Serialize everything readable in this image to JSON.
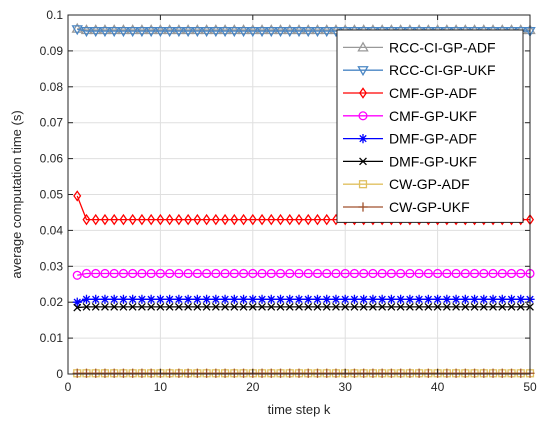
{
  "chart_data": {
    "type": "line",
    "title": "",
    "xlabel": "time step k",
    "ylabel": "average computation time (s)",
    "xlim": [
      0,
      50
    ],
    "ylim": [
      0,
      0.1
    ],
    "xticks": [
      0,
      10,
      20,
      30,
      40,
      50
    ],
    "yticks": [
      0,
      0.01,
      0.02,
      0.03,
      0.04,
      0.05,
      0.06,
      0.07,
      0.08,
      0.09,
      0.1
    ],
    "xtick_labels": [
      "0",
      "10",
      "20",
      "30",
      "40",
      "50"
    ],
    "ytick_labels": [
      "0",
      "0.01",
      "0.02",
      "0.03",
      "0.04",
      "0.05",
      "0.06",
      "0.07",
      "0.08",
      "0.09",
      "0.1"
    ],
    "grid": true,
    "legend_position": "top-right",
    "x": [
      1,
      2,
      3,
      4,
      5,
      6,
      7,
      8,
      9,
      10,
      11,
      12,
      13,
      14,
      15,
      16,
      17,
      18,
      19,
      20,
      21,
      22,
      23,
      24,
      25,
      26,
      27,
      28,
      29,
      30,
      31,
      32,
      33,
      34,
      35,
      36,
      37,
      38,
      39,
      40,
      41,
      42,
      43,
      44,
      45,
      46,
      47,
      48,
      49,
      50
    ],
    "series": [
      {
        "name": "RCC-CI-GP-ADF",
        "color": "#999999",
        "marker": "triangle-up",
        "first": 0.0962,
        "rest": 0.0958
      },
      {
        "name": "RCC-CI-GP-UKF",
        "color": "#4a86c4",
        "marker": "triangle-down",
        "first": 0.096,
        "rest": 0.0955
      },
      {
        "name": "CMF-GP-ADF",
        "color": "#ff0000",
        "marker": "diamond",
        "first": 0.0496,
        "rest": 0.043
      },
      {
        "name": "CMF-GP-UKF",
        "color": "#ff00ff",
        "marker": "circle",
        "first": 0.0275,
        "rest": 0.028
      },
      {
        "name": "DMF-GP-ADF",
        "color": "#0000ff",
        "marker": "asterisk",
        "first": 0.02,
        "rest": 0.0208
      },
      {
        "name": "DMF-GP-UKF",
        "color": "#000000",
        "marker": "x",
        "first": 0.0185,
        "rest": 0.0187
      },
      {
        "name": "CW-GP-ADF",
        "color": "#e0c060",
        "marker": "square",
        "first": 0.0002,
        "rest": 0.0002
      },
      {
        "name": "CW-GP-UKF",
        "color": "#a0522d",
        "marker": "plus",
        "first": 0.0002,
        "rest": 0.0002
      }
    ]
  }
}
